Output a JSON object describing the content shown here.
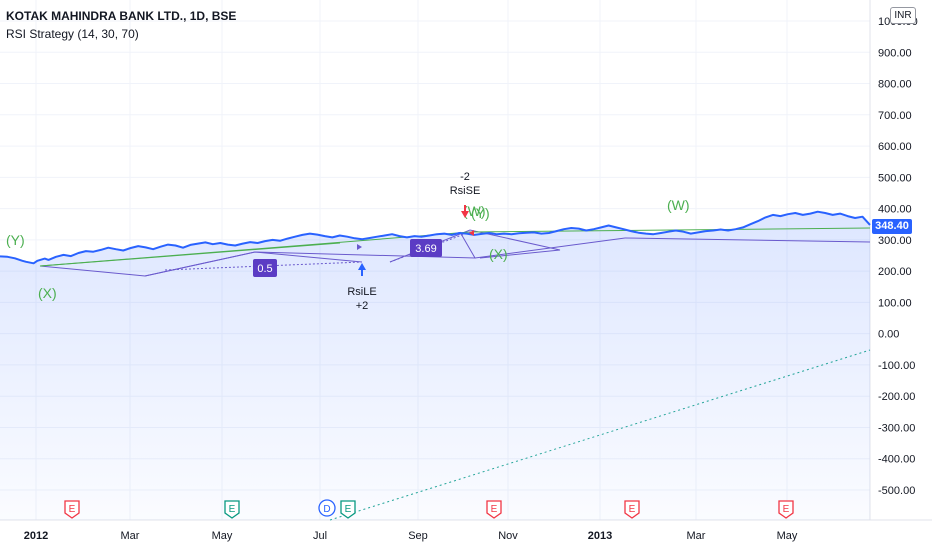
{
  "header": {
    "symbol_line": "KOTAK MAHINDRA BANK LTD., 1D, BSE",
    "strategy_line": "RSI Strategy (14, 30, 70)"
  },
  "currency_badge": "INR",
  "last_price_label": "348.40",
  "colors": {
    "price_line": "#2962ff",
    "wave_label": "#4caf50",
    "pattern_line": "#6a5acd",
    "earnings": "#f23645",
    "dividend_e": "#089981",
    "dividend_d": "#2962ff",
    "box_fill": "#5b3cc4"
  },
  "chart_data": {
    "type": "line",
    "ylim": [
      -550,
      1050
    ],
    "y_ticks": [
      "1000.00",
      "900.00",
      "800.00",
      "700.00",
      "600.00",
      "500.00",
      "400.00",
      "300.00",
      "200.00",
      "100.00",
      "0.00",
      "-100.00",
      "-200.00",
      "-300.00",
      "-400.00",
      "-500.00"
    ],
    "y_tick_values": [
      1000,
      900,
      800,
      700,
      600,
      500,
      400,
      300,
      200,
      100,
      0,
      -100,
      -200,
      -300,
      -400,
      -500
    ],
    "x_labels": [
      "2012",
      "Mar",
      "May",
      "Jul",
      "Sep",
      "Nov",
      "2013",
      "Mar",
      "May"
    ],
    "x_label_bold": [
      true,
      false,
      false,
      false,
      false,
      false,
      true,
      false,
      false
    ],
    "series": [
      {
        "values": [
          [
            0,
            247
          ],
          [
            2,
            246
          ],
          [
            4,
            241
          ],
          [
            6,
            233
          ],
          [
            7,
            230
          ],
          [
            9,
            225
          ],
          [
            10,
            233
          ],
          [
            12,
            240
          ],
          [
            13,
            236
          ],
          [
            15,
            246
          ],
          [
            17,
            252
          ],
          [
            19,
            248
          ],
          [
            21,
            258
          ],
          [
            23,
            264
          ],
          [
            25,
            262
          ],
          [
            27,
            268
          ],
          [
            29,
            275
          ],
          [
            31,
            270
          ],
          [
            33,
            266
          ],
          [
            35,
            274
          ],
          [
            37,
            280
          ],
          [
            39,
            276
          ],
          [
            41,
            270
          ],
          [
            43,
            278
          ],
          [
            45,
            285
          ],
          [
            47,
            282
          ],
          [
            49,
            275
          ],
          [
            51,
            284
          ],
          [
            53,
            288
          ],
          [
            55,
            292
          ],
          [
            57,
            286
          ],
          [
            59,
            290
          ],
          [
            61,
            285
          ],
          [
            63,
            282
          ],
          [
            65,
            288
          ],
          [
            67,
            293
          ],
          [
            69,
            290
          ],
          [
            71,
            296
          ],
          [
            73,
            300
          ],
          [
            75,
            297
          ],
          [
            77,
            304
          ],
          [
            79,
            310
          ],
          [
            81,
            316
          ],
          [
            83,
            320
          ],
          [
            85,
            317
          ],
          [
            87,
            312
          ],
          [
            89,
            308
          ],
          [
            91,
            314
          ],
          [
            93,
            310
          ],
          [
            95,
            305
          ],
          [
            97,
            302
          ],
          [
            99,
            306
          ],
          [
            101,
            310
          ],
          [
            103,
            314
          ],
          [
            105,
            318
          ],
          [
            107,
            312
          ],
          [
            109,
            308
          ],
          [
            111,
            312
          ],
          [
            113,
            310
          ],
          [
            115,
            314
          ],
          [
            117,
            318
          ],
          [
            119,
            320
          ],
          [
            121,
            316
          ],
          [
            123,
            322
          ],
          [
            125,
            320
          ],
          [
            127,
            316
          ],
          [
            129,
            319
          ],
          [
            131,
            322
          ],
          [
            133,
            318
          ],
          [
            135,
            320
          ],
          [
            137,
            318
          ],
          [
            139,
            321
          ],
          [
            141,
            323
          ],
          [
            143,
            324
          ],
          [
            145,
            320
          ],
          [
            147,
            322
          ],
          [
            149,
            328
          ],
          [
            151,
            334
          ],
          [
            153,
            338
          ],
          [
            155,
            336
          ],
          [
            157,
            330
          ],
          [
            159,
            334
          ],
          [
            161,
            340
          ],
          [
            163,
            346
          ],
          [
            165,
            340
          ],
          [
            167,
            334
          ],
          [
            169,
            328
          ],
          [
            171,
            323
          ],
          [
            173,
            320
          ],
          [
            175,
            318
          ],
          [
            177,
            322
          ],
          [
            179,
            326
          ],
          [
            181,
            330
          ],
          [
            183,
            326
          ],
          [
            185,
            320
          ],
          [
            187,
            324
          ],
          [
            189,
            328
          ],
          [
            191,
            330
          ],
          [
            193,
            333
          ],
          [
            195,
            330
          ],
          [
            197,
            334
          ],
          [
            199,
            340
          ],
          [
            201,
            350
          ],
          [
            203,
            360
          ],
          [
            205,
            372
          ],
          [
            207,
            380
          ],
          [
            209,
            376
          ],
          [
            211,
            382
          ],
          [
            213,
            386
          ],
          [
            215,
            380
          ],
          [
            217,
            384
          ],
          [
            219,
            390
          ],
          [
            221,
            386
          ],
          [
            223,
            380
          ],
          [
            225,
            384
          ],
          [
            227,
            376
          ],
          [
            229,
            370
          ],
          [
            231,
            374
          ],
          [
            233,
            348
          ]
        ]
      }
    ]
  },
  "annotations": {
    "wave_labels": [
      "(Y)",
      "(X)",
      "(W)",
      "(Y)",
      "(X)",
      "(W)"
    ],
    "box_labels": [
      "0.5",
      "3.69"
    ],
    "signal_long": [
      "RsiLE",
      "+2"
    ],
    "signal_short": [
      "-2",
      "RsiSE"
    ],
    "event_letters": [
      "E",
      "E",
      "D",
      "E",
      "E",
      "E",
      "E"
    ]
  }
}
